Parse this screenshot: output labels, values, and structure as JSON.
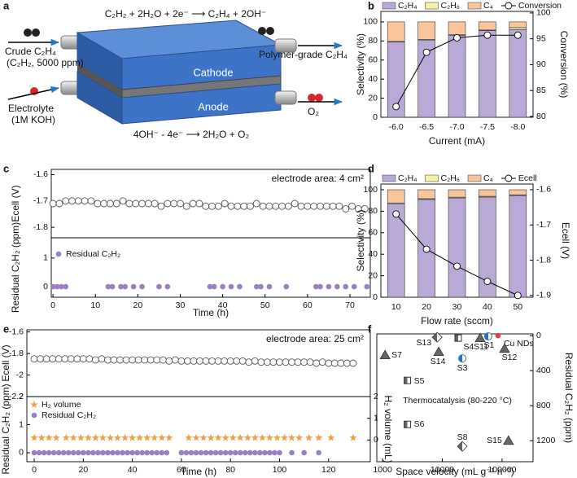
{
  "panel_labels": [
    "a",
    "b",
    "c",
    "d",
    "e",
    "f"
  ],
  "diagram": {
    "equation_top": "C₂H₂ + 2H₂O + 2e⁻ ⟶ C₂H₄ + 2OH⁻",
    "inlet_label": "Crude C₂H₄",
    "inlet_sublabel": "(C₂H₂, 5000 ppm)",
    "outlet_label": "Polymer-grade C₂H₄",
    "cathode": "Cathode",
    "anode": "Anode",
    "electrolyte_label": "Electrolyte",
    "electrolyte_sublabel": "(1M KOH)",
    "oxygen": "O₂",
    "equation_bottom": "4OH⁻ - 4e⁻ ⟶ 2H₂O + O₂"
  },
  "chart_data": [
    {
      "type": "bar",
      "stacked": true,
      "legend": "top",
      "categories": [
        "-6.0",
        "-6.5",
        "-7.0",
        "-7.5",
        "-8.0"
      ],
      "series": [
        {
          "name": "C₂H₄",
          "color": "#b9a9d6",
          "values": [
            79,
            81,
            86,
            91,
            92
          ]
        },
        {
          "name": "C₂H₆",
          "color": "#f6f1a9",
          "values": [
            0.5,
            0.5,
            0.5,
            0.5,
            2
          ]
        },
        {
          "name": "C₄",
          "color": "#f8c59c",
          "values": [
            20.5,
            18.5,
            13.5,
            8.5,
            6
          ]
        },
        {
          "name": "Conversion",
          "type": "line",
          "axis": "y2",
          "color": "#000000",
          "values": [
            81.9,
            92.4,
            95.2,
            95.7,
            95.7
          ]
        }
      ],
      "xlabel": "Current (mA)",
      "ylabel": "Selectivity (%)",
      "y2label": "Conversion (%)",
      "ylim": [
        0,
        111
      ],
      "yticks": [
        0,
        20,
        40,
        60,
        80,
        100
      ],
      "y2lim": [
        79.84,
        100.3
      ],
      "y2ticks": [
        80,
        85,
        90,
        95,
        100
      ]
    },
    {
      "type": "scatter",
      "ylabel": "Ecell (V)",
      "annotation": "electrode area: 4 cm²",
      "x": [
        0,
        1.5,
        3,
        4.5,
        6,
        7.5,
        9,
        10.5,
        12,
        13.5,
        15,
        16.5,
        18,
        19.5,
        21,
        22.5,
        24,
        25.5,
        27,
        28.5,
        30,
        31.5,
        33,
        34.5,
        36,
        37.5,
        39,
        40.5,
        42,
        43.5,
        45,
        46.5,
        48,
        49.5,
        51,
        52.5,
        54,
        55.5,
        57,
        58.5,
        60,
        61.5,
        63,
        64.5,
        66,
        67.5,
        69,
        70.5,
        72,
        73.5
      ],
      "series": [
        {
          "marker": "open-circle",
          "color": "#555555",
          "values": [
            -1.71,
            -1.71,
            -1.7,
            -1.7,
            -1.7,
            -1.7,
            -1.7,
            -1.71,
            -1.71,
            -1.71,
            -1.71,
            -1.7,
            -1.71,
            -1.71,
            -1.71,
            -1.71,
            -1.71,
            -1.72,
            -1.71,
            -1.71,
            -1.71,
            -1.72,
            -1.71,
            -1.71,
            -1.72,
            -1.72,
            -1.72,
            -1.71,
            -1.72,
            -1.72,
            -1.72,
            -1.72,
            -1.71,
            -1.72,
            -1.72,
            -1.72,
            -1.72,
            -1.72,
            -1.71,
            -1.72,
            -1.72,
            -1.72,
            -1.72,
            -1.72,
            -1.72,
            -1.72,
            -1.73,
            -1.72,
            -1.73,
            -1.73
          ]
        }
      ],
      "xlim": [
        -0.4,
        74.8
      ],
      "ylim": [
        -1.84,
        -1.58
      ],
      "yticks": [
        -1.6,
        -1.7,
        -1.8
      ]
    },
    {
      "type": "scatter",
      "legend": "upper left",
      "xlabel": "Time (h)",
      "ylabel": "Residual C₂H₂ (ppm)",
      "series": [
        {
          "name": "Residual C₂H₂",
          "marker": "circle",
          "color": "#9b7fc6",
          "x": [
            0,
            1,
            2,
            3,
            13,
            14,
            16,
            17,
            19,
            21,
            25,
            27,
            37,
            38,
            40,
            42,
            44,
            48,
            49,
            51,
            55,
            62,
            63,
            65,
            67,
            69,
            71,
            74
          ],
          "values": [
            0,
            0,
            0,
            0,
            0,
            0,
            0,
            0,
            0,
            0,
            0,
            0,
            0,
            0,
            0,
            0,
            0,
            0,
            0,
            0,
            0,
            0,
            0,
            0,
            0,
            0,
            0,
            0
          ]
        }
      ],
      "xlim": [
        -0.4,
        74.8
      ],
      "xticks": [
        0,
        10,
        20,
        30,
        40,
        50,
        60,
        70
      ],
      "ylim": [
        -0.37,
        1.71
      ],
      "yticks": [
        0,
        1
      ]
    },
    {
      "type": "bar",
      "stacked": true,
      "legend": "top",
      "categories": [
        "10",
        "20",
        "30",
        "40",
        "50"
      ],
      "series": [
        {
          "name": "C₂H₄",
          "color": "#b9a9d6",
          "values": [
            87,
            91,
            92.4,
            93.2,
            94.7
          ]
        },
        {
          "name": "C₂H₆",
          "color": "#f6f1a9",
          "values": [
            0.7,
            0.7,
            0.7,
            0.7,
            0.5
          ]
        },
        {
          "name": "C₄",
          "color": "#f8c59c",
          "values": [
            12.3,
            8.3,
            6.9,
            6.1,
            4.8
          ]
        },
        {
          "name": "Ecell",
          "type": "line",
          "axis": "y2",
          "color": "#000000",
          "values": [
            -1.669,
            -1.769,
            -1.817,
            -1.86,
            -1.9
          ]
        }
      ],
      "xlabel": "Flow rate (sccm)",
      "ylabel": "Selectivity (%)",
      "y2label": "Ecell (V)",
      "ylim": [
        0,
        105.3
      ],
      "yticks": [
        0,
        20,
        40,
        60,
        80,
        100
      ],
      "y2lim": [
        -1.905,
        -1.584
      ],
      "y2ticks": [
        -1.6,
        -1.7,
        -1.8,
        -1.9
      ]
    },
    {
      "type": "scatter",
      "ylabel": "Ecell (V)",
      "annotation": "electrode area: 25 cm²",
      "x": [
        0,
        2.5,
        5,
        7.5,
        10,
        12.5,
        15,
        17.5,
        20,
        22.5,
        25,
        27.5,
        30,
        32.5,
        35,
        37.5,
        40,
        42.5,
        45,
        47.5,
        50,
        52.5,
        55,
        57.5,
        60,
        62.5,
        65,
        67.5,
        70,
        72.5,
        75,
        77.5,
        80,
        82.5,
        85,
        87.5,
        90,
        92.5,
        95,
        97.5,
        100,
        102.5,
        105,
        107.5,
        110,
        112.5,
        115,
        117.5,
        120,
        122.5,
        125,
        127.5,
        130
      ],
      "series": [
        {
          "marker": "open-circle",
          "color": "#555555",
          "values": [
            -1.85,
            -1.85,
            -1.85,
            -1.85,
            -1.85,
            -1.85,
            -1.85,
            -1.85,
            -1.85,
            -1.85,
            -1.86,
            -1.85,
            -1.86,
            -1.86,
            -1.86,
            -1.86,
            -1.86,
            -1.86,
            -1.86,
            -1.86,
            -1.86,
            -1.86,
            -1.87,
            -1.86,
            -1.87,
            -1.87,
            -1.87,
            -1.87,
            -1.87,
            -1.87,
            -1.87,
            -1.87,
            -1.87,
            -1.87,
            -1.87,
            -1.88,
            -1.87,
            -1.88,
            -1.88,
            -1.88,
            -1.88,
            -1.88,
            -1.88,
            -1.88,
            -1.88,
            -1.88,
            -1.89,
            -1.88,
            -1.89,
            -1.89,
            -1.89,
            -1.89,
            -1.89
          ]
        }
      ],
      "xlim": [
        -3,
        137
      ],
      "ylim": [
        -2.2,
        -1.58
      ],
      "yticks": [
        -1.6,
        -1.8,
        -2.0,
        -2.2
      ]
    },
    {
      "type": "scatter",
      "legend": "upper left",
      "xlabel": "Time (h)",
      "ylabel": "Residual C₂H₂ (ppm)",
      "y2label": "H₂ volume (mL)",
      "series": [
        {
          "name": "H₂ volume",
          "marker": "star",
          "color": "#f0a042",
          "axis": "y2",
          "x": [
            0,
            3,
            6,
            9,
            13,
            16,
            19,
            22,
            25,
            28,
            31,
            34,
            37,
            40,
            43,
            46,
            49,
            52,
            55,
            63,
            66,
            69,
            72,
            75,
            78,
            81,
            84,
            87,
            90,
            93,
            96,
            99,
            102,
            105,
            108,
            112,
            116,
            121,
            130
          ],
          "values": [
            0.1,
            0.1,
            0.1,
            0.1,
            0.1,
            0.1,
            0.1,
            0.1,
            0.1,
            0.1,
            0.1,
            0.1,
            0.1,
            0.1,
            0.1,
            0.1,
            0.1,
            0.1,
            0.1,
            0.1,
            0.1,
            0.1,
            0.1,
            0.1,
            0.1,
            0.1,
            0.1,
            0.1,
            0.1,
            0.1,
            0.1,
            0.1,
            0.1,
            0.1,
            0.1,
            0.1,
            0.1,
            0.1,
            0.1
          ]
        },
        {
          "name": "Residual C₂H₂",
          "marker": "circle",
          "color": "#9b7fc6",
          "x": [
            0,
            2,
            4,
            6,
            8,
            10,
            12,
            14,
            16,
            18,
            20,
            22,
            24,
            26,
            28,
            30,
            32,
            34,
            36,
            38,
            40,
            42,
            44,
            46,
            48,
            50,
            52,
            54,
            60,
            62,
            64,
            66,
            68,
            70,
            72,
            74,
            76,
            78,
            80,
            82,
            84,
            86,
            88,
            90,
            92,
            94,
            96,
            98,
            100,
            105,
            110,
            116
          ],
          "values": [
            0,
            0,
            0,
            0,
            0,
            0,
            0,
            0,
            0,
            0,
            0,
            0,
            0,
            0,
            0,
            0,
            0,
            0,
            0,
            0,
            0,
            0,
            0,
            0,
            0,
            0,
            0,
            0,
            0,
            0,
            0,
            0,
            0,
            0,
            0,
            0,
            0,
            0,
            0,
            0,
            0,
            0,
            0,
            0,
            0,
            0,
            0,
            0,
            0,
            0,
            0,
            0
          ]
        }
      ],
      "xlim": [
        -3,
        137
      ],
      "xticks": [
        0,
        20,
        40,
        60,
        80,
        100,
        120
      ],
      "ylim": [
        -0.32,
        2
      ],
      "yticks": [
        0,
        1,
        2
      ],
      "y2lim": [
        -1,
        2
      ],
      "y2ticks": [
        0,
        1,
        2
      ]
    },
    {
      "type": "scatter",
      "xscale": "log",
      "y_axis_position": "right",
      "xlabel": "Space velocity (mL g⁻¹ h⁻¹)",
      "ylabel": "Residual C₂H₂ (ppm)",
      "annotation": "Thermocatalysis (80-220 °C)",
      "points": [
        {
          "name": "S7",
          "x": 1100,
          "y": 223,
          "shape": "triangle",
          "color": "#666666"
        },
        {
          "name": "S5",
          "x": 2600,
          "y": 512,
          "shape": "half-square",
          "color": "#666666"
        },
        {
          "name": "S6",
          "x": 2600,
          "y": 1014,
          "shape": "half-square",
          "color": "#666666"
        },
        {
          "name": "S13",
          "x": 8200,
          "y": 19,
          "shape": "diamond",
          "color": "#666666"
        },
        {
          "name": "S4",
          "x": 18400,
          "y": 28,
          "shape": "half-square",
          "color": "#666666"
        },
        {
          "name": "S11",
          "x": 43000,
          "y": 28,
          "shape": "triangle",
          "color": "#666666"
        },
        {
          "name": "S14",
          "x": 8700,
          "y": 186,
          "shape": "triangle",
          "color": "#666666"
        },
        {
          "name": "S3",
          "x": 21600,
          "y": 260,
          "shape": "half-circle",
          "color": "#2f6fb8"
        },
        {
          "name": "S1",
          "x": 58700,
          "y": 9,
          "shape": "half-circle",
          "color": "#2f6fb8"
        },
        {
          "name": "Cu NDs",
          "x": 85500,
          "y": 0,
          "shape": "circle",
          "color": "#e8403a"
        },
        {
          "name": "S12",
          "x": 110000,
          "y": 149,
          "shape": "triangle",
          "color": "#666666"
        },
        {
          "name": "S8",
          "x": 21600,
          "y": 1265,
          "shape": "diamond",
          "color": "#666666"
        },
        {
          "name": "S15",
          "x": 128000,
          "y": 1200,
          "shape": "triangle",
          "color": "#666666"
        }
      ],
      "xlim": [
        800,
        330000
      ],
      "xticks": [
        1000,
        10000,
        100000
      ],
      "ylim": [
        1440,
        -20
      ],
      "yticks": [
        0,
        400,
        800,
        1200
      ]
    }
  ]
}
